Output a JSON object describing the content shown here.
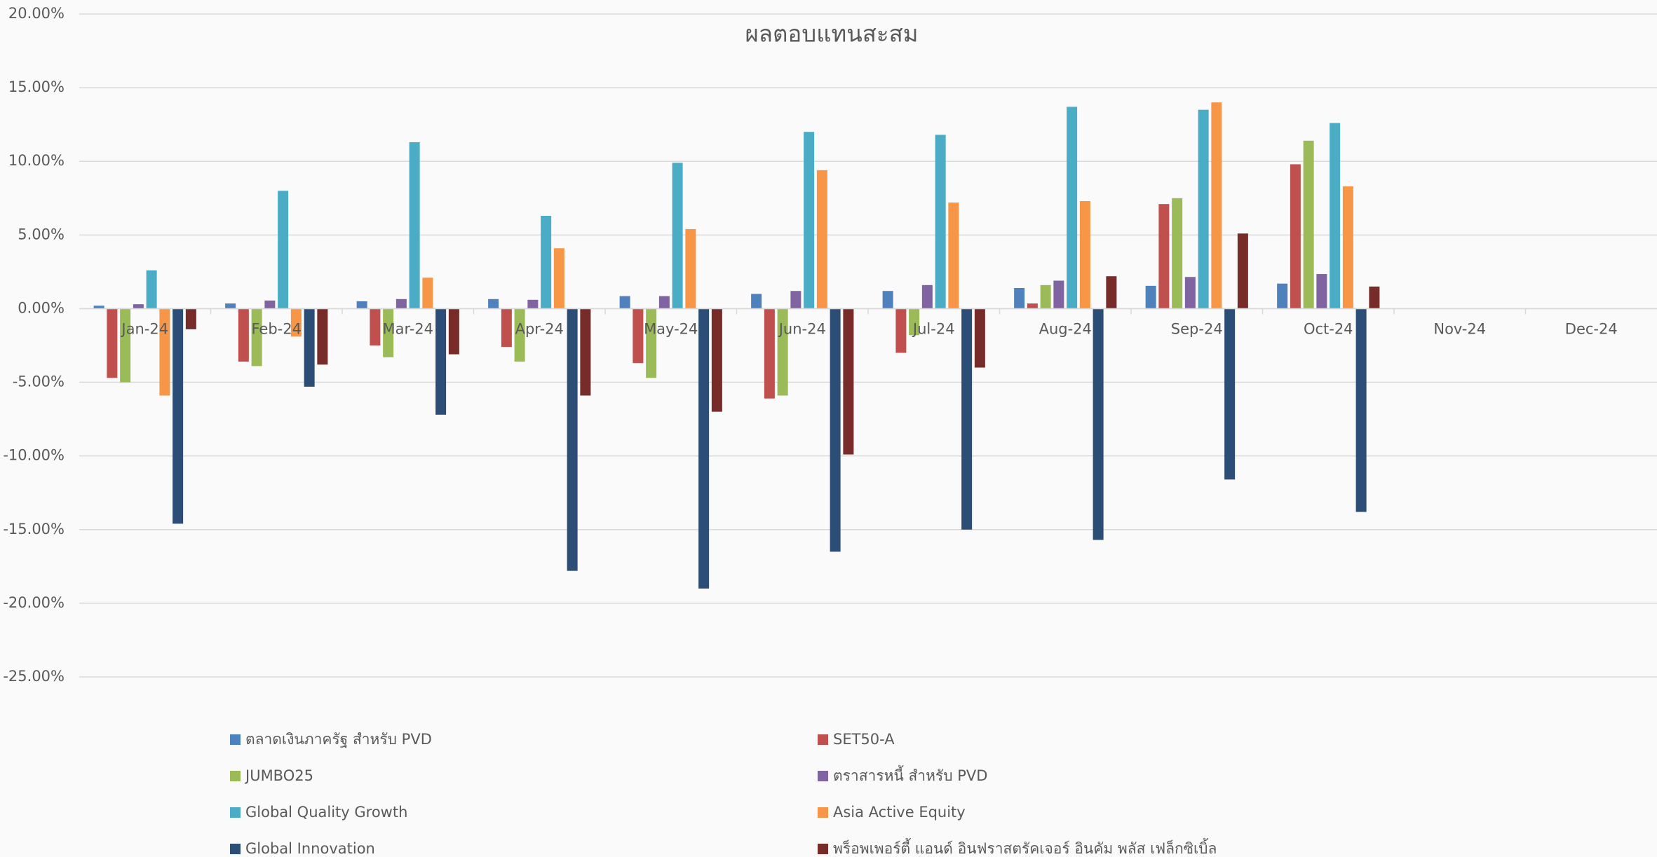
{
  "chart_data": {
    "type": "bar",
    "title": "ผลตอบแทนสะสม",
    "categories": [
      "Jan-24",
      "Feb-24",
      "Mar-24",
      "Apr-24",
      "May-24",
      "Jun-24",
      "Jul-24",
      "Aug-24",
      "Sep-24",
      "Oct-24",
      "Nov-24",
      "Dec-24"
    ],
    "series": [
      {
        "name": "ตลาดเงินภาครัฐ สำหรับ PVD",
        "color": "#4f81bd",
        "values": [
          0.2,
          0.35,
          0.5,
          0.65,
          0.85,
          1.0,
          1.2,
          1.4,
          1.55,
          1.7,
          null,
          null
        ]
      },
      {
        "name": "SET50-A",
        "color": "#c0504d",
        "values": [
          -4.7,
          -3.6,
          -2.5,
          -2.6,
          -3.7,
          -6.1,
          -3.0,
          0.35,
          7.1,
          9.8,
          null,
          null
        ]
      },
      {
        "name": "JUMBO25",
        "color": "#9bbb59",
        "values": [
          -5.0,
          -3.9,
          -3.3,
          -3.6,
          -4.7,
          -5.9,
          -1.8,
          1.6,
          7.5,
          11.4,
          null,
          null
        ]
      },
      {
        "name": "ตราสารหนี้ สำหรับ PVD",
        "color": "#8064a2",
        "values": [
          0.3,
          0.55,
          0.65,
          0.6,
          0.85,
          1.2,
          1.6,
          1.9,
          2.15,
          2.35,
          null,
          null
        ]
      },
      {
        "name": "Global Quality Growth",
        "color": "#4bacc6",
        "values": [
          2.6,
          8.0,
          11.3,
          6.3,
          9.9,
          12.0,
          11.8,
          13.7,
          13.5,
          12.6,
          null,
          null
        ]
      },
      {
        "name": "Asia Active Equity",
        "color": "#f79646",
        "values": [
          -5.9,
          -1.9,
          2.1,
          4.1,
          5.4,
          9.4,
          7.2,
          7.3,
          14.0,
          8.3,
          null,
          null
        ]
      },
      {
        "name": "Global Innovation",
        "color": "#2c4d75",
        "values": [
          -14.6,
          -5.3,
          -7.2,
          -17.8,
          -19.0,
          -16.5,
          -15.0,
          -15.7,
          -11.6,
          -13.8,
          null,
          null
        ]
      },
      {
        "name": "พร็อพเพอร์ตี้ แอนด์ อินฟราสตรัคเจอร์ อินคัม พลัส เฟล็กซิเบิ้ล",
        "color": "#772c2a",
        "values": [
          -1.4,
          -3.8,
          -3.1,
          -5.9,
          -7.0,
          -9.9,
          -4.0,
          2.2,
          5.1,
          1.5,
          null,
          null
        ]
      }
    ],
    "ylim": [
      -25,
      20
    ],
    "yticks": [
      {
        "value": -25,
        "label": "-25.00%"
      },
      {
        "value": -20,
        "label": "-20.00%"
      },
      {
        "value": -15,
        "label": "-15.00%"
      },
      {
        "value": -10,
        "label": "-10.00%"
      },
      {
        "value": -5,
        "label": "-5.00%"
      },
      {
        "value": 0,
        "label": "0.00%"
      },
      {
        "value": 5,
        "label": "5.00%"
      },
      {
        "value": 10,
        "label": "10.00%"
      },
      {
        "value": 15,
        "label": "15.00%"
      },
      {
        "value": 20,
        "label": "20.00%"
      }
    ],
    "grid": true
  }
}
